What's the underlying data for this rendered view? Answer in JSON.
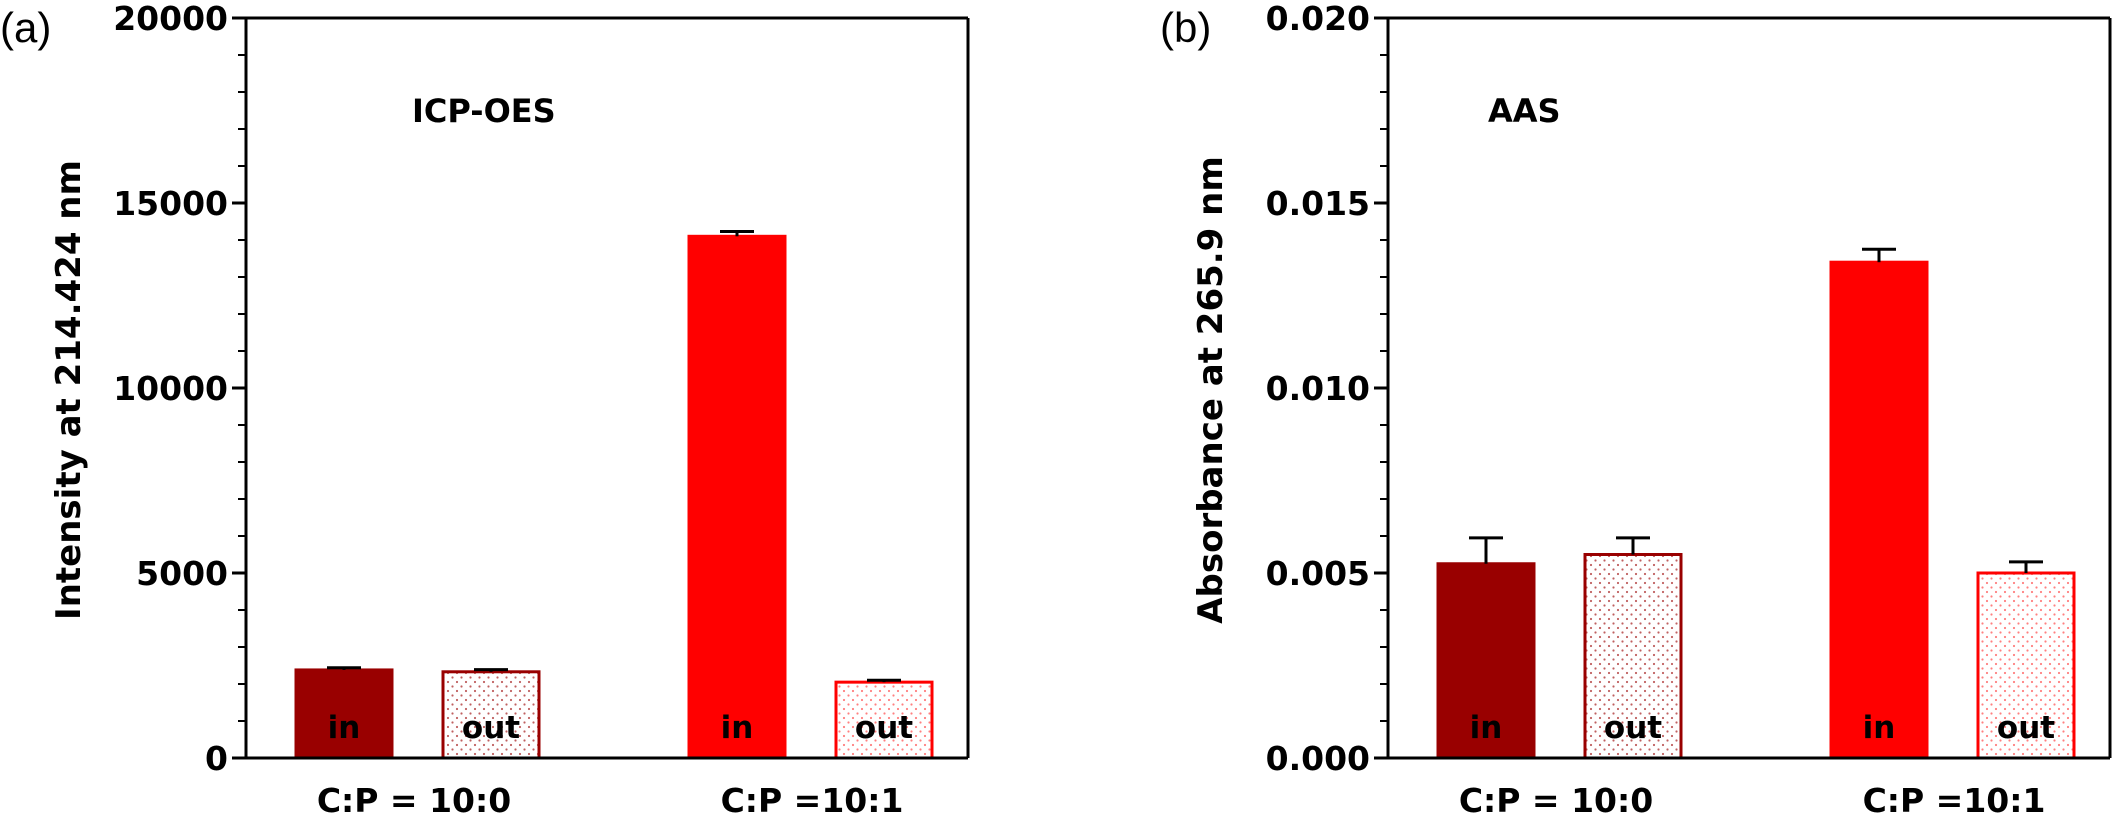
{
  "chart_data": [
    {
      "panel": "(a)",
      "type": "bar",
      "title": "ICP-OES",
      "ylabel": "Intensity at 214.424 nm",
      "xlabel": "",
      "ylim": [
        0,
        20000
      ],
      "yticks": [
        "0",
        "5000",
        "10000",
        "15000",
        "20000"
      ],
      "groups": [
        "C:P = 10:0",
        "C:P =10:1"
      ],
      "bars": [
        {
          "group": "C:P = 10:0",
          "label": "in",
          "value": 2380,
          "error": 60
        },
        {
          "group": "C:P = 10:0",
          "label": "out",
          "value": 2330,
          "error": 60
        },
        {
          "group": "C:P =10:1",
          "label": "in",
          "value": 14100,
          "error": 130
        },
        {
          "group": "C:P =10:1",
          "label": "out",
          "value": 2050,
          "error": 50
        }
      ],
      "grid": false
    },
    {
      "panel": "(b)",
      "type": "bar",
      "title": "AAS",
      "ylabel": "Absorbance at 265.9 nm",
      "xlabel": "",
      "ylim": [
        0,
        0.02
      ],
      "yticks": [
        "0.000",
        "0.005",
        "0.010",
        "0.015",
        "0.020"
      ],
      "groups": [
        "C:P = 10:0",
        "C:P =10:1"
      ],
      "bars": [
        {
          "group": "C:P = 10:0",
          "label": "in",
          "value": 0.00525,
          "error": 0.0007
        },
        {
          "group": "C:P = 10:0",
          "label": "out",
          "value": 0.0055,
          "error": 0.00045
        },
        {
          "group": "C:P =10:1",
          "label": "in",
          "value": 0.0134,
          "error": 0.00035
        },
        {
          "group": "C:P =10:1",
          "label": "out",
          "value": 0.005,
          "error": 0.0003
        }
      ],
      "grid": false
    }
  ],
  "colors": {
    "c10_0_in_fill": "#990000",
    "c10_0_out_stroke": "#990000",
    "c10_1_in_fill": "#ff0000",
    "c10_1_out_stroke": "#ff0000",
    "out_fill": "#ffffff",
    "out_dots_dark": "#c06060",
    "out_dots_red": "#ff8080",
    "axis": "#000000"
  }
}
